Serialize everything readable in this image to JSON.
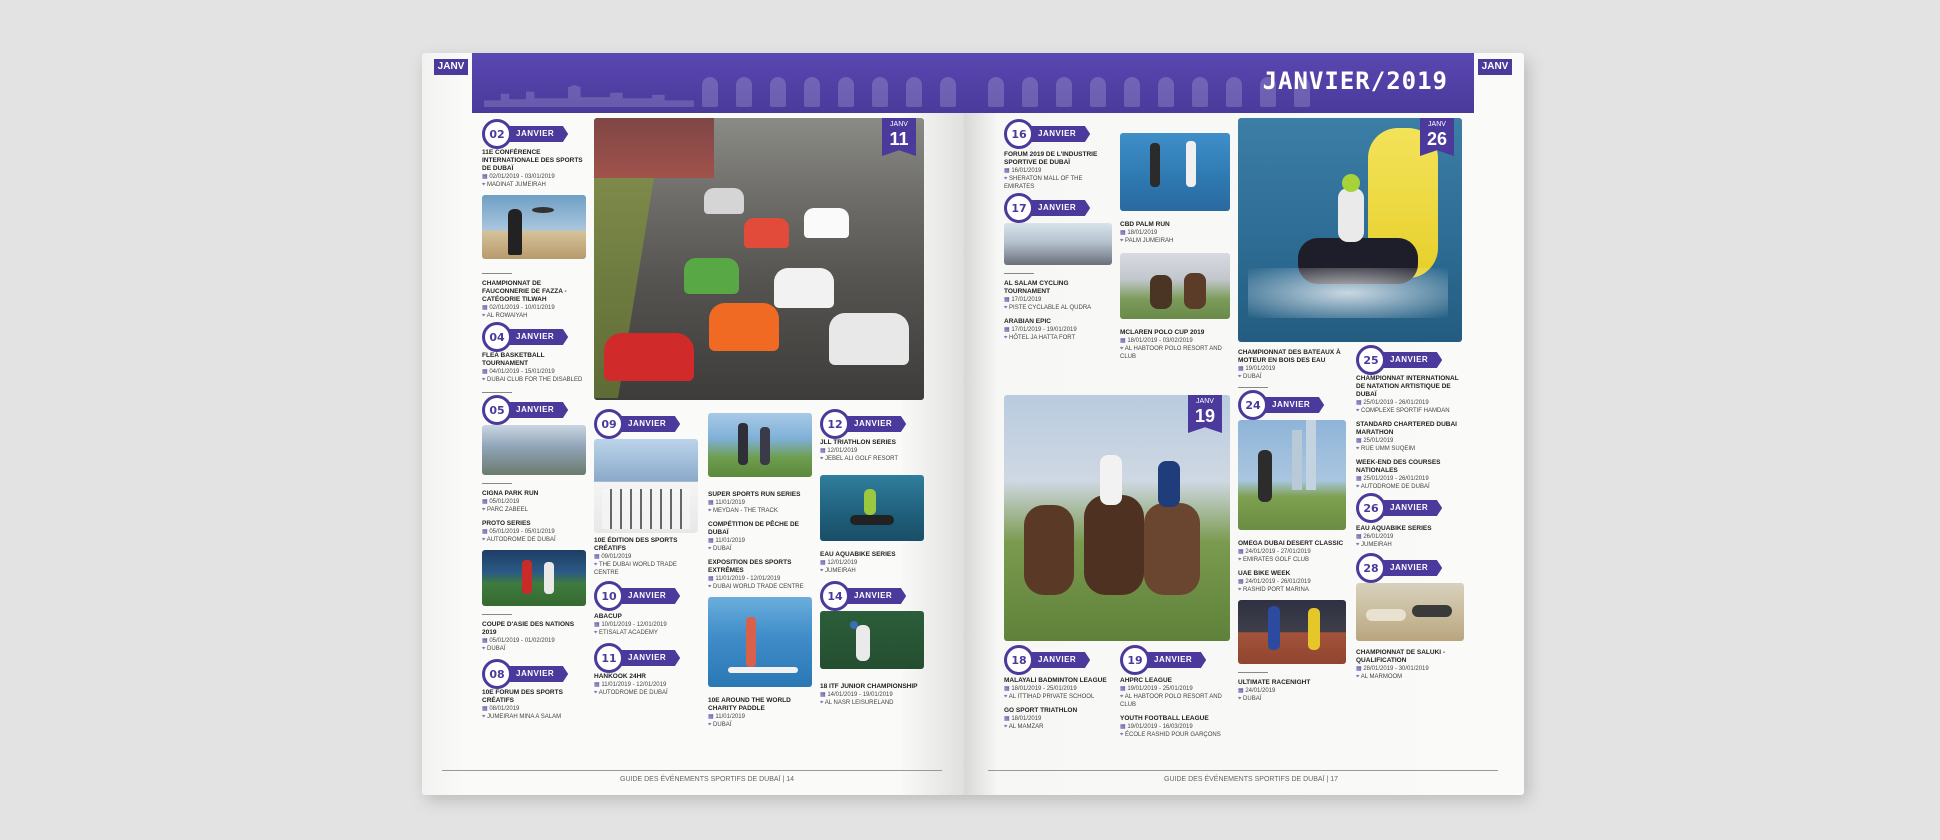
{
  "tab_left": "JANV",
  "tab_right": "JANV",
  "month_title": "JANVIER/2019",
  "footer_left": "GUIDE DES ÉVÉNEMENTS SPORTIFS DE DUBAÏ | 14",
  "footer_right": "GUIDE DES ÉVÉNEMENTS SPORTIFS DE DUBAÏ | 17",
  "flags": {
    "f11": {
      "m": "JANV",
      "n": "11"
    },
    "f26": {
      "m": "JANV",
      "n": "26"
    },
    "f19": {
      "m": "JANV",
      "n": "19"
    }
  },
  "badges": {
    "b02": {
      "num": "02",
      "label": "JANVIER"
    },
    "b04": {
      "num": "04",
      "label": "JANVIER"
    },
    "b05": {
      "num": "05",
      "label": "JANVIER"
    },
    "b08": {
      "num": "08",
      "label": "JANVIER"
    },
    "b09": {
      "num": "09",
      "label": "JANVIER"
    },
    "b10": {
      "num": "10",
      "label": "JANVIER"
    },
    "b11": {
      "num": "11",
      "label": "JANVIER"
    },
    "b12": {
      "num": "12",
      "label": "JANVIER"
    },
    "b14": {
      "num": "14",
      "label": "JANVIER"
    },
    "b16": {
      "num": "16",
      "label": "JANVIER"
    },
    "b17": {
      "num": "17",
      "label": "JANVIER"
    },
    "b18": {
      "num": "18",
      "label": "JANVIER"
    },
    "b19": {
      "num": "19",
      "label": "JANVIER"
    },
    "b24": {
      "num": "24",
      "label": "JANVIER"
    },
    "b25": {
      "num": "25",
      "label": "JANVIER"
    },
    "b26": {
      "num": "26",
      "label": "JANVIER"
    },
    "b28": {
      "num": "28",
      "label": "JANVIER"
    }
  },
  "events": {
    "e1": {
      "t": "11E CONFÉRENCE INTERNATIONALE DES SPORTS DE DUBAÏ",
      "d": "02/01/2019 - 03/01/2019",
      "p": "MADINAT JUMEIRAH"
    },
    "e2": {
      "t": "CHAMPIONNAT DE FAUCONNERIE DE FAZZA - CATÉGORIE TILWAH",
      "d": "02/01/2019 - 10/01/2019",
      "p": "AL ROWAIYAH"
    },
    "e3": {
      "t": "FLEA BASKETBALL TOURNAMENT",
      "d": "04/01/2019 - 15/01/2019",
      "p": "DUBAI CLUB FOR THE DISABLED"
    },
    "e4": {
      "t": "CIGNA PARK RUN",
      "d": "05/01/2019",
      "p": "PARC ZABEEL"
    },
    "e5": {
      "t": "PROTO SERIES",
      "d": "05/01/2019 - 05/01/2019",
      "p": "AUTODROME DE DUBAÏ"
    },
    "e6": {
      "t": "COUPE D'ASIE DES NATIONS 2019",
      "d": "05/01/2019 - 01/02/2019",
      "p": "DUBAÏ"
    },
    "e7": {
      "t": "10E FORUM DES SPORTS CRÉATIFS",
      "d": "08/01/2019",
      "p": "JUMEIRAH MINA A SALAM"
    },
    "e8": {
      "t": "10E ÉDITION DES SPORTS CRÉATIFS",
      "d": "09/01/2019",
      "p": "THE DUBAI WORLD TRADE CENTRE"
    },
    "e9": {
      "t": "ABACUP",
      "d": "10/01/2019 - 12/01/2019",
      "p": "ETISALAT ACADEMY"
    },
    "e10": {
      "t": "HANKOOK 24HR",
      "d": "11/01/2019 - 12/01/2019",
      "p": "AUTODROME DE DUBAÏ"
    },
    "e11": {
      "t": "SUPER SPORTS RUN SERIES",
      "d": "11/01/2019",
      "p": "MEYDAN - THE TRACK"
    },
    "e12": {
      "t": "COMPÉTITION DE PÊCHE DE DUBAÏ",
      "d": "11/01/2019",
      "p": "DUBAÏ"
    },
    "e13": {
      "t": "EXPOSITION DES SPORTS EXTRÊMES",
      "d": "11/01/2019 - 12/01/2019",
      "p": "DUBAI WORLD TRADE CENTRE"
    },
    "e14": {
      "t": "10E AROUND THE WORLD CHARITY PADDLE",
      "d": "11/01/2019",
      "p": "DUBAÏ"
    },
    "e15": {
      "t": "JLL TRIATHLON SERIES",
      "d": "12/01/2019",
      "p": "JEBEL ALI GOLF RESORT"
    },
    "e16": {
      "t": "EAU AQUABIKE SERIES",
      "d": "12/01/2019",
      "p": "JUMEIRAH"
    },
    "e17": {
      "t": "18 ITF JUNIOR CHAMPIONSHIP",
      "d": "14/01/2019 - 19/01/2019",
      "p": "AL NASR LEISURELAND"
    },
    "e18": {
      "t": "FORUM 2019 DE L'INDUSTRIE SPORTIVE DE DUBAÏ",
      "d": "16/01/2019",
      "p": "SHERATON MALL OF THE EMIRATES"
    },
    "e19": {
      "t": "CBD PALM RUN",
      "d": "18/01/2019",
      "p": "PALM JUMEIRAH"
    },
    "e20": {
      "t": "AL SALAM CYCLING TOURNAMENT",
      "d": "17/01/2019",
      "p": "PISTE CYCLABLE AL QUDRA"
    },
    "e21": {
      "t": "ARABIAN EPIC",
      "d": "17/01/2019 - 19/01/2019",
      "p": "HÔTEL JA HATTA FORT"
    },
    "e22": {
      "t": "MCLAREN POLO CUP 2019",
      "d": "18/01/2019 - 03/02/2019",
      "p": "AL HABTOOR POLO RESORT AND CLUB"
    },
    "e23": {
      "t": "CHAMPIONNAT DES BATEAUX À MOTEUR EN BOIS DES EAU",
      "d": "19/01/2019",
      "p": "DUBAÏ"
    },
    "e24": {
      "t": "MALAYALI BADMINTON LEAGUE",
      "d": "18/01/2019 - 25/01/2019",
      "p": "AL ITTIHAD PRIVATE SCHOOL"
    },
    "e25": {
      "t": "GO SPORT TRIATHLON",
      "d": "18/01/2019",
      "p": "AL MAMZAR"
    },
    "e26": {
      "t": "AHPRC LEAGUE",
      "d": "19/01/2019 - 25/01/2019",
      "p": "AL HABTOOR POLO RESORT AND CLUB"
    },
    "e27": {
      "t": "YOUTH FOOTBALL LEAGUE",
      "d": "19/01/2019 - 16/03/2019",
      "p": "ÉCOLE RASHID POUR GARÇONS"
    },
    "e28": {
      "t": "OMEGA DUBAI DESERT CLASSIC",
      "d": "24/01/2019 - 27/01/2019",
      "p": "EMIRATES GOLF CLUB"
    },
    "e29": {
      "t": "UAE BIKE WEEK",
      "d": "24/01/2019 - 26/01/2019",
      "p": "RASHID PORT MARINA"
    },
    "e30": {
      "t": "ULTIMATE RACENIGHT",
      "d": "24/01/2019",
      "p": "DUBAÏ"
    },
    "e31": {
      "t": "CHAMPIONNAT INTERNATIONAL DE NATATION ARTISTIQUE DE DUBAÏ",
      "d": "25/01/2019 - 26/01/2019",
      "p": "COMPLEXE SPORTIF HAMDAN"
    },
    "e32": {
      "t": "STANDARD CHARTERED DUBAI MARATHON",
      "d": "25/01/2019",
      "p": "RUE UMM SUQEIM"
    },
    "e33": {
      "t": "WEEK-END DES COURSES NATIONALES",
      "d": "25/01/2019 - 26/01/2019",
      "p": "AUTODROME DE DUBAÏ"
    },
    "e34": {
      "t": "EAU AQUABIKE SERIES",
      "d": "26/01/2019",
      "p": "JUMEIRAH"
    },
    "e35": {
      "t": "CHAMPIONNAT DE SALUKI - QUALIFICATION",
      "d": "28/01/2019 - 30/01/2019",
      "p": "AL MARMOOM"
    }
  }
}
